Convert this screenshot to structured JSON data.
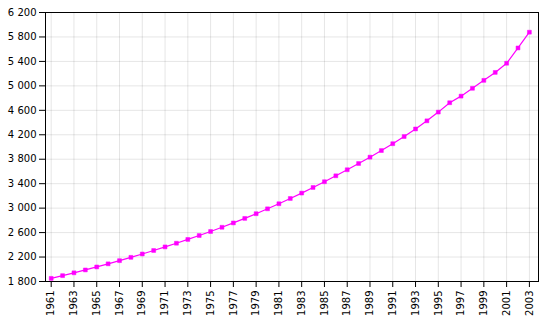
{
  "chart_data": {
    "type": "line",
    "x": [
      1961,
      1962,
      1963,
      1964,
      1965,
      1966,
      1967,
      1968,
      1969,
      1970,
      1971,
      1972,
      1973,
      1974,
      1975,
      1976,
      1977,
      1978,
      1979,
      1980,
      1981,
      1982,
      1983,
      1984,
      1985,
      1986,
      1987,
      1988,
      1989,
      1990,
      1991,
      1992,
      1993,
      1994,
      1995,
      1996,
      1997,
      1998,
      1999,
      2000,
      2001,
      2002,
      2003
    ],
    "values": [
      1851,
      1896,
      1942,
      1989,
      2038,
      2089,
      2141,
      2195,
      2250,
      2307,
      2366,
      2426,
      2488,
      2552,
      2618,
      2687,
      2758,
      2832,
      2909,
      2989,
      3072,
      3158,
      3246,
      3338,
      3432,
      3529,
      3628,
      3730,
      3834,
      3942,
      4054,
      4171,
      4295,
      4428,
      4571,
      4724,
      4832,
      4960,
      5090,
      5220,
      5370,
      5620,
      5878
    ],
    "color": "#ff00ff",
    "marker": "square",
    "xlim": [
      1960.5,
      2003.8
    ],
    "xticks": [
      1961,
      1963,
      1965,
      1967,
      1969,
      1971,
      1973,
      1975,
      1977,
      1979,
      1981,
      1983,
      1985,
      1987,
      1989,
      1991,
      1993,
      1995,
      1997,
      1999,
      2001,
      2003
    ],
    "ylim": [
      1800,
      6200
    ],
    "yticks": [
      {
        "value": 1800,
        "label": "1 800"
      },
      {
        "value": 2200,
        "label": "2 200"
      },
      {
        "value": 2600,
        "label": "2 600"
      },
      {
        "value": 3000,
        "label": "3 000"
      },
      {
        "value": 3400,
        "label": "3 400"
      },
      {
        "value": 3800,
        "label": "3 800"
      },
      {
        "value": 4200,
        "label": "4 200"
      },
      {
        "value": 4600,
        "label": "4 600"
      },
      {
        "value": 5000,
        "label": "5 000"
      },
      {
        "value": 5400,
        "label": "5 400"
      },
      {
        "value": 5800,
        "label": "5 800"
      },
      {
        "value": 6200,
        "label": "6 200"
      }
    ],
    "grid": true
  }
}
